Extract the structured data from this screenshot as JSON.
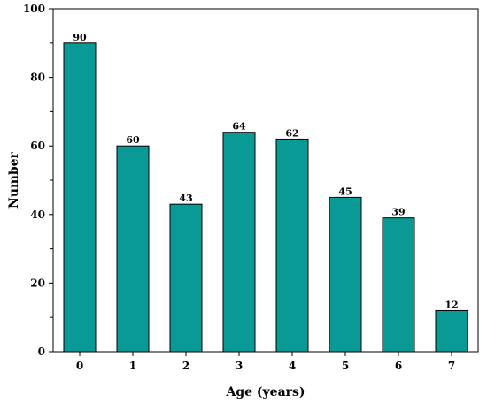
{
  "chart_data": {
    "type": "bar",
    "title": "",
    "xlabel": "Age (years)",
    "ylabel": "Number",
    "categories": [
      "0",
      "1",
      "2",
      "3",
      "4",
      "5",
      "6",
      "7"
    ],
    "values": [
      90,
      60,
      43,
      64,
      62,
      45,
      39,
      12
    ],
    "data_labels": [
      "90",
      "60",
      "43",
      "64",
      "62",
      "45",
      "39",
      "12"
    ],
    "ylim": [
      0,
      100
    ],
    "yticks": [
      0,
      20,
      40,
      60,
      80,
      100
    ],
    "ytick_labels": [
      "0",
      "20",
      "40",
      "60",
      "80",
      "100"
    ],
    "grid": false,
    "legend": "none",
    "colors": {
      "bar_fill": "#0a9a96",
      "bar_edge": "#000000",
      "axis": "#000000"
    }
  }
}
